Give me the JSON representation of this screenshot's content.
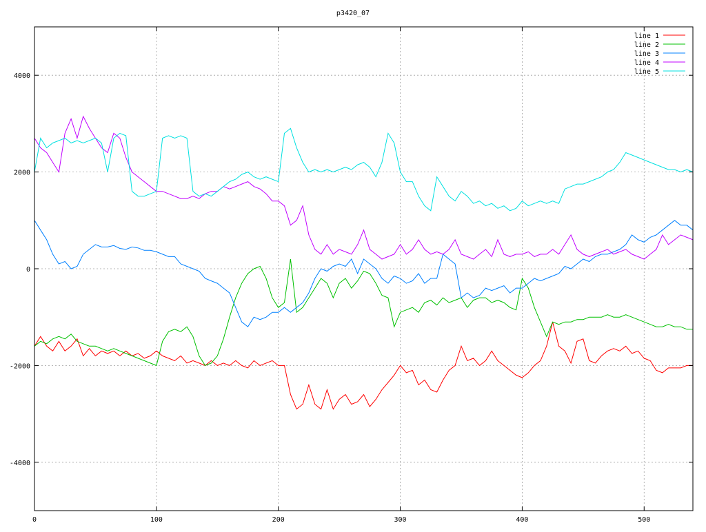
{
  "chart_data": {
    "type": "line",
    "title": "p3420_07",
    "xlabel": "",
    "ylabel": "",
    "xlim": [
      0,
      540
    ],
    "ylim": [
      -5000,
      5000
    ],
    "x_ticks": [
      0,
      100,
      200,
      300,
      400,
      500
    ],
    "y_ticks": [
      -4000,
      -2000,
      0,
      2000,
      4000
    ],
    "x_tick_labels": [
      "0",
      "100",
      "200",
      "300",
      "400",
      "500"
    ],
    "y_tick_labels": [
      "-4000",
      "-2000",
      "0",
      "2000",
      "4000"
    ],
    "grid": true,
    "legend_position": "top-right",
    "series": [
      {
        "name": "line 1",
        "color": "#ff0000",
        "x": [
          0,
          5,
          10,
          15,
          20,
          25,
          30,
          35,
          40,
          45,
          50,
          55,
          60,
          65,
          70,
          75,
          80,
          85,
          90,
          95,
          100,
          105,
          110,
          115,
          120,
          125,
          130,
          135,
          140,
          145,
          150,
          155,
          160,
          165,
          170,
          175,
          180,
          185,
          190,
          195,
          200,
          205,
          210,
          215,
          220,
          225,
          230,
          235,
          240,
          245,
          250,
          255,
          260,
          265,
          270,
          275,
          280,
          285,
          290,
          295,
          300,
          305,
          310,
          315,
          320,
          325,
          330,
          335,
          340,
          345,
          350,
          355,
          360,
          365,
          370,
          375,
          380,
          385,
          390,
          395,
          400,
          405,
          410,
          415,
          420,
          425,
          430,
          435,
          440,
          445,
          450,
          455,
          460,
          465,
          470,
          475,
          480,
          485,
          490,
          495,
          500,
          505,
          510,
          515,
          520,
          525,
          530,
          535,
          540
        ],
        "values": [
          -1600,
          -1400,
          -1600,
          -1700,
          -1500,
          -1700,
          -1600,
          -1450,
          -1800,
          -1650,
          -1800,
          -1700,
          -1750,
          -1700,
          -1800,
          -1700,
          -1800,
          -1750,
          -1850,
          -1800,
          -1700,
          -1800,
          -1850,
          -1900,
          -1800,
          -1950,
          -1900,
          -1950,
          -2000,
          -1900,
          -2000,
          -1950,
          -2000,
          -1900,
          -2000,
          -2050,
          -1900,
          -2000,
          -1950,
          -1900,
          -2000,
          -2000,
          -2600,
          -2900,
          -2800,
          -2400,
          -2800,
          -2900,
          -2500,
          -2900,
          -2700,
          -2600,
          -2800,
          -2750,
          -2600,
          -2850,
          -2700,
          -2500,
          -2350,
          -2200,
          -2000,
          -2150,
          -2100,
          -2400,
          -2300,
          -2500,
          -2550,
          -2300,
          -2100,
          -2000,
          -1600,
          -1900,
          -1850,
          -2000,
          -1900,
          -1700,
          -1900,
          -2000,
          -2100,
          -2200,
          -2250,
          -2150,
          -2000,
          -1900,
          -1600,
          -1100,
          -1600,
          -1700,
          -1950,
          -1500,
          -1450,
          -1900,
          -1950,
          -1800,
          -1700,
          -1650,
          -1700,
          -1600,
          -1750,
          -1700,
          -1850,
          -1900,
          -2100,
          -2150,
          -2050,
          -2050,
          -2050,
          -2000,
          -2000
        ]
      },
      {
        "name": "line 2",
        "color": "#00c000",
        "x": [
          0,
          5,
          10,
          15,
          20,
          25,
          30,
          35,
          40,
          45,
          50,
          55,
          60,
          65,
          70,
          75,
          80,
          85,
          90,
          95,
          100,
          105,
          110,
          115,
          120,
          125,
          130,
          135,
          140,
          145,
          150,
          155,
          160,
          165,
          170,
          175,
          180,
          185,
          190,
          195,
          200,
          205,
          210,
          215,
          220,
          225,
          230,
          235,
          240,
          245,
          250,
          255,
          260,
          265,
          270,
          275,
          280,
          285,
          290,
          295,
          300,
          305,
          310,
          315,
          320,
          325,
          330,
          335,
          340,
          345,
          350,
          355,
          360,
          365,
          370,
          375,
          380,
          385,
          390,
          395,
          400,
          405,
          410,
          415,
          420,
          425,
          430,
          435,
          440,
          445,
          450,
          455,
          460,
          465,
          470,
          475,
          480,
          485,
          490,
          495,
          500,
          505,
          510,
          515,
          520,
          525,
          530,
          535,
          540
        ],
        "values": [
          -1600,
          -1500,
          -1550,
          -1450,
          -1400,
          -1450,
          -1350,
          -1500,
          -1550,
          -1600,
          -1600,
          -1650,
          -1700,
          -1650,
          -1700,
          -1750,
          -1800,
          -1850,
          -1900,
          -1950,
          -2000,
          -1500,
          -1300,
          -1250,
          -1300,
          -1200,
          -1400,
          -1800,
          -2000,
          -1950,
          -1800,
          -1450,
          -1000,
          -600,
          -300,
          -100,
          0,
          50,
          -200,
          -600,
          -800,
          -700,
          200,
          -900,
          -800,
          -600,
          -400,
          -200,
          -300,
          -600,
          -300,
          -200,
          -400,
          -250,
          -50,
          -100,
          -300,
          -550,
          -600,
          -1200,
          -900,
          -850,
          -800,
          -900,
          -700,
          -650,
          -750,
          -600,
          -700,
          -650,
          -600,
          -800,
          -650,
          -600,
          -600,
          -700,
          -650,
          -700,
          -800,
          -850,
          -200,
          -400,
          -800,
          -1100,
          -1400,
          -1100,
          -1150,
          -1100,
          -1100,
          -1050,
          -1050,
          -1000,
          -1000,
          -1000,
          -950,
          -1000,
          -1000,
          -950,
          -1000,
          -1050,
          -1100,
          -1150,
          -1200,
          -1200,
          -1150,
          -1200,
          -1200,
          -1250,
          -1250
        ]
      },
      {
        "name": "line 3",
        "color": "#0080ff",
        "x": [
          0,
          5,
          10,
          15,
          20,
          25,
          30,
          35,
          40,
          45,
          50,
          55,
          60,
          65,
          70,
          75,
          80,
          85,
          90,
          95,
          100,
          105,
          110,
          115,
          120,
          125,
          130,
          135,
          140,
          145,
          150,
          155,
          160,
          165,
          170,
          175,
          180,
          185,
          190,
          195,
          200,
          205,
          210,
          215,
          220,
          225,
          230,
          235,
          240,
          245,
          250,
          255,
          260,
          265,
          270,
          275,
          280,
          285,
          290,
          295,
          300,
          305,
          310,
          315,
          320,
          325,
          330,
          335,
          340,
          345,
          350,
          355,
          360,
          365,
          370,
          375,
          380,
          385,
          390,
          395,
          400,
          405,
          410,
          415,
          420,
          425,
          430,
          435,
          440,
          445,
          450,
          455,
          460,
          465,
          470,
          475,
          480,
          485,
          490,
          495,
          500,
          505,
          510,
          515,
          520,
          525,
          530,
          535,
          540
        ],
        "values": [
          1000,
          800,
          600,
          300,
          100,
          150,
          0,
          50,
          300,
          400,
          500,
          450,
          450,
          480,
          420,
          400,
          450,
          430,
          380,
          380,
          350,
          300,
          250,
          250,
          100,
          50,
          0,
          -50,
          -200,
          -250,
          -300,
          -400,
          -500,
          -800,
          -1100,
          -1200,
          -1000,
          -1050,
          -1000,
          -900,
          -900,
          -800,
          -900,
          -800,
          -700,
          -500,
          -200,
          0,
          -50,
          50,
          100,
          50,
          200,
          -100,
          200,
          100,
          0,
          -200,
          -300,
          -150,
          -200,
          -300,
          -250,
          -100,
          -300,
          -200,
          -200,
          300,
          200,
          100,
          -600,
          -500,
          -600,
          -550,
          -400,
          -450,
          -400,
          -350,
          -500,
          -400,
          -400,
          -300,
          -200,
          -250,
          -200,
          -150,
          -100,
          50,
          0,
          100,
          200,
          150,
          250,
          300,
          300,
          350,
          400,
          500,
          700,
          600,
          550,
          650,
          700,
          800,
          900,
          1000,
          900,
          900,
          800
        ]
      },
      {
        "name": "line 4",
        "color": "#c000ff",
        "x": [
          0,
          5,
          10,
          15,
          20,
          25,
          30,
          35,
          40,
          45,
          50,
          55,
          60,
          65,
          70,
          75,
          80,
          85,
          90,
          95,
          100,
          105,
          110,
          115,
          120,
          125,
          130,
          135,
          140,
          145,
          150,
          155,
          160,
          165,
          170,
          175,
          180,
          185,
          190,
          195,
          200,
          205,
          210,
          215,
          220,
          225,
          230,
          235,
          240,
          245,
          250,
          255,
          260,
          265,
          270,
          275,
          280,
          285,
          290,
          295,
          300,
          305,
          310,
          315,
          320,
          325,
          330,
          335,
          340,
          345,
          350,
          355,
          360,
          365,
          370,
          375,
          380,
          385,
          390,
          395,
          400,
          405,
          410,
          415,
          420,
          425,
          430,
          435,
          440,
          445,
          450,
          455,
          460,
          465,
          470,
          475,
          480,
          485,
          490,
          495,
          500,
          505,
          510,
          515,
          520,
          525,
          530,
          535,
          540
        ],
        "values": [
          2700,
          2500,
          2400,
          2200,
          2000,
          2800,
          3100,
          2700,
          3150,
          2900,
          2700,
          2500,
          2400,
          2800,
          2700,
          2300,
          2000,
          1900,
          1800,
          1700,
          1600,
          1600,
          1550,
          1500,
          1450,
          1450,
          1500,
          1450,
          1550,
          1600,
          1600,
          1700,
          1650,
          1700,
          1750,
          1800,
          1700,
          1650,
          1550,
          1400,
          1400,
          1300,
          900,
          1000,
          1300,
          700,
          400,
          300,
          500,
          300,
          400,
          350,
          300,
          500,
          800,
          400,
          300,
          200,
          250,
          300,
          500,
          300,
          400,
          600,
          400,
          300,
          350,
          300,
          400,
          600,
          300,
          250,
          200,
          300,
          400,
          250,
          600,
          300,
          250,
          300,
          300,
          350,
          250,
          300,
          300,
          400,
          300,
          500,
          700,
          400,
          300,
          250,
          300,
          350,
          400,
          300,
          350,
          400,
          300,
          250,
          200,
          300,
          400,
          700,
          500,
          600,
          700,
          650,
          600
        ]
      },
      {
        "name": "line 5",
        "color": "#00e0e0",
        "x": [
          0,
          5,
          10,
          15,
          20,
          25,
          30,
          35,
          40,
          45,
          50,
          55,
          60,
          65,
          70,
          75,
          80,
          85,
          90,
          95,
          100,
          105,
          110,
          115,
          120,
          125,
          130,
          135,
          140,
          145,
          150,
          155,
          160,
          165,
          170,
          175,
          180,
          185,
          190,
          195,
          200,
          205,
          210,
          215,
          220,
          225,
          230,
          235,
          240,
          245,
          250,
          255,
          260,
          265,
          270,
          275,
          280,
          285,
          290,
          295,
          300,
          305,
          310,
          315,
          320,
          325,
          330,
          335,
          340,
          345,
          350,
          355,
          360,
          365,
          370,
          375,
          380,
          385,
          390,
          395,
          400,
          405,
          410,
          415,
          420,
          425,
          430,
          435,
          440,
          445,
          450,
          455,
          460,
          465,
          470,
          475,
          480,
          485,
          490,
          495,
          500,
          505,
          510,
          515,
          520,
          525,
          530,
          535,
          540
        ],
        "values": [
          2000,
          2700,
          2500,
          2600,
          2650,
          2700,
          2600,
          2650,
          2600,
          2650,
          2700,
          2600,
          2000,
          2700,
          2800,
          2750,
          1600,
          1500,
          1500,
          1550,
          1600,
          2700,
          2750,
          2700,
          2750,
          2700,
          1600,
          1500,
          1550,
          1500,
          1600,
          1700,
          1800,
          1850,
          1950,
          2000,
          1900,
          1850,
          1900,
          1850,
          1800,
          2800,
          2900,
          2500,
          2200,
          2000,
          2050,
          2000,
          2050,
          2000,
          2050,
          2100,
          2050,
          2150,
          2200,
          2100,
          1900,
          2200,
          2800,
          2600,
          2000,
          1800,
          1800,
          1500,
          1300,
          1200,
          1900,
          1700,
          1500,
          1400,
          1600,
          1500,
          1350,
          1400,
          1300,
          1350,
          1250,
          1300,
          1200,
          1250,
          1400,
          1300,
          1350,
          1400,
          1350,
          1400,
          1350,
          1650,
          1700,
          1750,
          1750,
          1800,
          1850,
          1900,
          2000,
          2050,
          2200,
          2400,
          2350,
          2300,
          2250,
          2200,
          2150,
          2100,
          2050,
          2050,
          2000,
          2050,
          2000
        ]
      }
    ]
  }
}
